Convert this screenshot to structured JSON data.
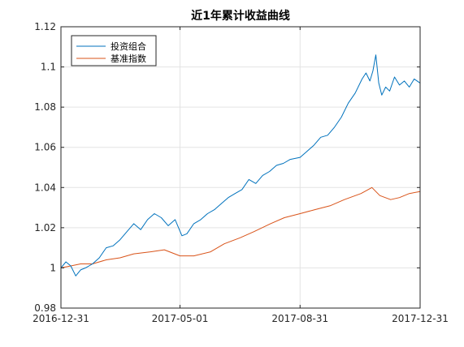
{
  "chart_data": {
    "type": "line",
    "title": "近1年累计收益曲线",
    "xlabel": "",
    "ylabel": "",
    "x_range": [
      "2016-12-31",
      "2017-12-31"
    ],
    "x_ticks": [
      "2016-12-31",
      "2017-05-01",
      "2017-08-31",
      "2017-12-31"
    ],
    "ylim": [
      0.98,
      1.12
    ],
    "y_ticks": [
      0.98,
      1.0,
      1.02,
      1.04,
      1.06,
      1.08,
      1.1,
      1.12
    ],
    "y_tick_labels": [
      "0.98",
      "1",
      "1.02",
      "1.04",
      "1.06",
      "1.08",
      "1.1",
      "1.12"
    ],
    "grid": true,
    "legend_position": "top-left",
    "series": [
      {
        "name": "投资组合",
        "color": "#0072BD",
        "points": [
          [
            "2016-12-31",
            1.0
          ],
          [
            "2017-01-05",
            1.003
          ],
          [
            "2017-01-10",
            1.001
          ],
          [
            "2017-01-15",
            0.996
          ],
          [
            "2017-01-20",
            0.999
          ],
          [
            "2017-01-25",
            1.0
          ],
          [
            "2017-02-01",
            1.002
          ],
          [
            "2017-02-08",
            1.005
          ],
          [
            "2017-02-15",
            1.01
          ],
          [
            "2017-02-22",
            1.011
          ],
          [
            "2017-03-01",
            1.014
          ],
          [
            "2017-03-08",
            1.018
          ],
          [
            "2017-03-15",
            1.022
          ],
          [
            "2017-03-22",
            1.019
          ],
          [
            "2017-03-29",
            1.024
          ],
          [
            "2017-04-05",
            1.027
          ],
          [
            "2017-04-12",
            1.025
          ],
          [
            "2017-04-19",
            1.021
          ],
          [
            "2017-04-26",
            1.024
          ],
          [
            "2017-05-03",
            1.016
          ],
          [
            "2017-05-08",
            1.017
          ],
          [
            "2017-05-15",
            1.022
          ],
          [
            "2017-05-22",
            1.024
          ],
          [
            "2017-05-29",
            1.027
          ],
          [
            "2017-06-05",
            1.029
          ],
          [
            "2017-06-12",
            1.032
          ],
          [
            "2017-06-19",
            1.035
          ],
          [
            "2017-06-26",
            1.037
          ],
          [
            "2017-07-03",
            1.039
          ],
          [
            "2017-07-10",
            1.044
          ],
          [
            "2017-07-17",
            1.042
          ],
          [
            "2017-07-24",
            1.046
          ],
          [
            "2017-07-31",
            1.048
          ],
          [
            "2017-08-07",
            1.051
          ],
          [
            "2017-08-14",
            1.052
          ],
          [
            "2017-08-21",
            1.054
          ],
          [
            "2017-08-31",
            1.055
          ],
          [
            "2017-09-07",
            1.058
          ],
          [
            "2017-09-14",
            1.061
          ],
          [
            "2017-09-21",
            1.065
          ],
          [
            "2017-09-28",
            1.066
          ],
          [
            "2017-10-05",
            1.07
          ],
          [
            "2017-10-12",
            1.075
          ],
          [
            "2017-10-19",
            1.082
          ],
          [
            "2017-10-26",
            1.087
          ],
          [
            "2017-11-02",
            1.094
          ],
          [
            "2017-11-06",
            1.097
          ],
          [
            "2017-11-10",
            1.093
          ],
          [
            "2017-11-13",
            1.098
          ],
          [
            "2017-11-16",
            1.106
          ],
          [
            "2017-11-19",
            1.092
          ],
          [
            "2017-11-22",
            1.086
          ],
          [
            "2017-11-26",
            1.09
          ],
          [
            "2017-11-30",
            1.088
          ],
          [
            "2017-12-05",
            1.095
          ],
          [
            "2017-12-10",
            1.091
          ],
          [
            "2017-12-15",
            1.093
          ],
          [
            "2017-12-20",
            1.09
          ],
          [
            "2017-12-25",
            1.094
          ],
          [
            "2017-12-31",
            1.092
          ]
        ]
      },
      {
        "name": "基准指数",
        "color": "#D95319",
        "points": [
          [
            "2016-12-31",
            1.0
          ],
          [
            "2017-01-10",
            1.001
          ],
          [
            "2017-01-20",
            1.002
          ],
          [
            "2017-02-01",
            1.002
          ],
          [
            "2017-02-15",
            1.004
          ],
          [
            "2017-03-01",
            1.005
          ],
          [
            "2017-03-15",
            1.007
          ],
          [
            "2017-04-01",
            1.008
          ],
          [
            "2017-04-15",
            1.009
          ],
          [
            "2017-05-01",
            1.006
          ],
          [
            "2017-05-15",
            1.006
          ],
          [
            "2017-06-01",
            1.008
          ],
          [
            "2017-06-15",
            1.012
          ],
          [
            "2017-07-01",
            1.015
          ],
          [
            "2017-07-15",
            1.018
          ],
          [
            "2017-08-01",
            1.022
          ],
          [
            "2017-08-15",
            1.025
          ],
          [
            "2017-08-31",
            1.027
          ],
          [
            "2017-09-15",
            1.029
          ],
          [
            "2017-10-01",
            1.031
          ],
          [
            "2017-10-15",
            1.034
          ],
          [
            "2017-11-01",
            1.037
          ],
          [
            "2017-11-12",
            1.04
          ],
          [
            "2017-11-20",
            1.036
          ],
          [
            "2017-12-01",
            1.034
          ],
          [
            "2017-12-10",
            1.035
          ],
          [
            "2017-12-20",
            1.037
          ],
          [
            "2017-12-31",
            1.038
          ]
        ]
      }
    ]
  }
}
